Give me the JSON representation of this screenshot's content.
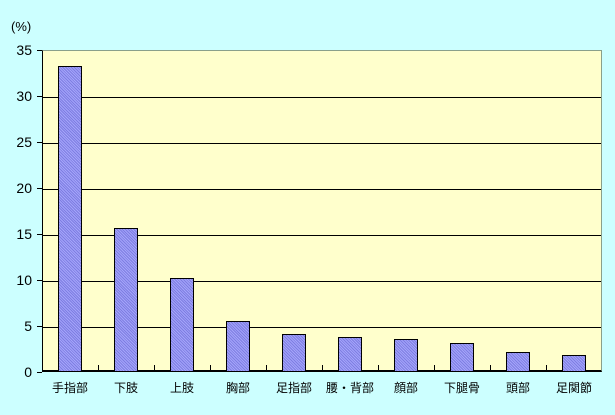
{
  "chart_data": {
    "type": "bar",
    "title": "",
    "unit_label": "(%)",
    "categories": [
      "手指部",
      "下肢",
      "上肢",
      "胸部",
      "足指部",
      "腰・背部",
      "顔部",
      "下腿骨",
      "頭部",
      "足関節"
    ],
    "values": [
      33.3,
      15.7,
      10.2,
      5.5,
      4.1,
      3.8,
      3.6,
      3.2,
      2.2,
      1.8
    ],
    "xlabel": "",
    "ylabel": "(%)",
    "ylim": [
      0,
      35
    ],
    "yticks": [
      0,
      5,
      10,
      15,
      20,
      25,
      30,
      35
    ],
    "grid": true,
    "legend": "none",
    "colors": {
      "page_background": "#ccffff",
      "plot_background": "#ffffcc",
      "bar_light": "#a4a4fa",
      "bar_dark": "#7e7ee2",
      "line": "#000000",
      "plot_border": "#8aa08a"
    }
  }
}
